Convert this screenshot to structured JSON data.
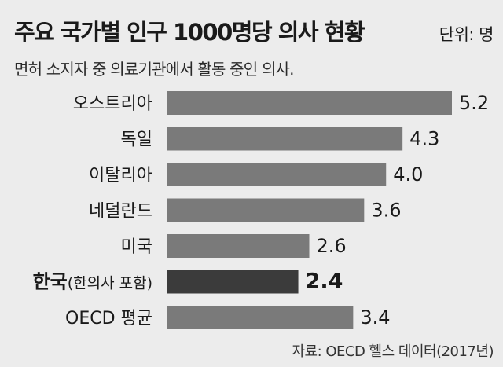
{
  "header": {
    "title": "주요 국가별 인구 1000명당 의사 현황",
    "unit": "단위: 명",
    "subtitle": "면허 소지자 중 의료기관에서 활동 중인 의사."
  },
  "source": "자료: OECD 헬스 데이터(2017년)",
  "colors": {
    "bar": "#7a7a7a",
    "highlight": "#3b3b3b",
    "background": "#ececec",
    "text": "#1a1a1a"
  },
  "chart_data": {
    "type": "bar",
    "orientation": "horizontal",
    "categories": [
      {
        "label": "오스트리아",
        "note": ""
      },
      {
        "label": "독일",
        "note": ""
      },
      {
        "label": "이탈리아",
        "note": ""
      },
      {
        "label": "네덜란드",
        "note": ""
      },
      {
        "label": "미국",
        "note": ""
      },
      {
        "label": "한국",
        "note": "(한의사 포함)"
      },
      {
        "label": "OECD 평균",
        "note": ""
      }
    ],
    "values": [
      5.2,
      4.3,
      4.0,
      3.6,
      2.6,
      2.4,
      3.4
    ],
    "value_labels": [
      "5.2",
      "4.3",
      "4.0",
      "3.6",
      "2.6",
      "2.4",
      "3.4"
    ],
    "highlight_index": 5,
    "xlim": [
      0,
      5.2
    ],
    "grid": false,
    "legend": "none"
  }
}
